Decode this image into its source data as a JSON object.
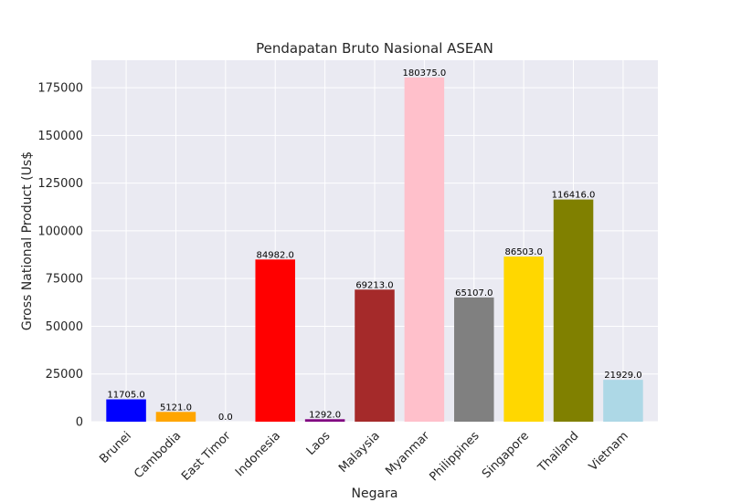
{
  "chart_data": {
    "type": "bar",
    "title": "Pendapatan Bruto Nasional ASEAN",
    "xlabel": "Negara",
    "ylabel": "Gross National Product (Us$",
    "categories": [
      "Brunei",
      "Cambodia",
      "East Timor",
      "Indonesia",
      "Laos",
      "Malaysia",
      "Myanmar",
      "Philippines",
      "Singapore",
      "Thailand",
      "Vietnam"
    ],
    "values": [
      11705.0,
      5121.0,
      0.0,
      84982.0,
      1292.0,
      69213.0,
      180375.0,
      65107.0,
      86503.0,
      116416.0,
      21929.0
    ],
    "data_labels": [
      "11705.0",
      "5121.0",
      "0.0",
      "84982.0",
      "1292.0",
      "69213.0",
      "180375.0",
      "65107.0",
      "86503.0",
      "116416.0",
      "21929.0"
    ],
    "colors": [
      "#0000ff",
      "#ffa500",
      "#008000",
      "#ff0000",
      "#800080",
      "#a52a2a",
      "#ffc0cb",
      "#808080",
      "#ffd700",
      "#808000",
      "#add8e6"
    ],
    "yticks": [
      0,
      25000,
      50000,
      75000,
      100000,
      125000,
      150000,
      175000
    ],
    "ylim": [
      0,
      189393.75
    ],
    "grid": true,
    "plot_background": "#eaeaf2",
    "grid_color": "#ffffff"
  }
}
